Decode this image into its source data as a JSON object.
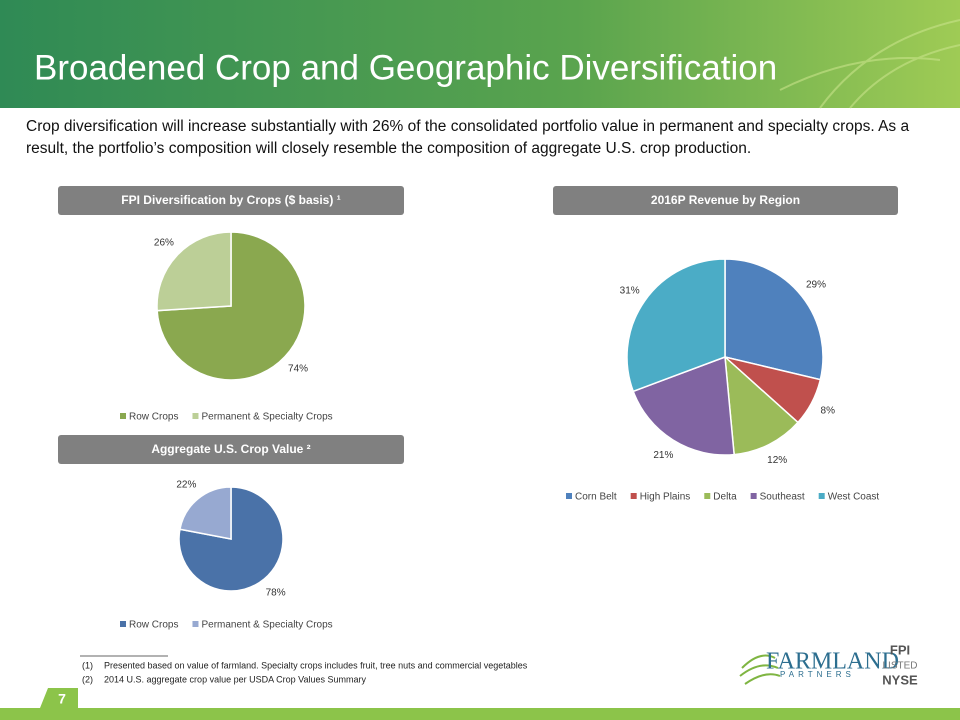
{
  "slide": {
    "title": "Broadened Crop and Geographic Diversification",
    "intro": "Crop diversification will increase substantially with 26% of the consolidated portfolio value in permanent and specialty crops. As a result, the portfolio’s composition will closely resemble the composition of aggregate U.S. crop production.",
    "footnotes": [
      {
        "marker": "(1)",
        "text": "Presented based on value of farmland. Specialty crops includes fruit, tree nuts and commercial vegetables"
      },
      {
        "marker": "(2)",
        "text": "2014 U.S. aggregate crop value per USDA Crop Values Summary"
      }
    ],
    "page_number": "7",
    "logo": {
      "name": "FARMLAND",
      "sub": "PARTNERS"
    },
    "badge": {
      "ticker": "FPI",
      "listed": "LISTED",
      "exchange": "NYSE"
    }
  },
  "chart_data": [
    {
      "type": "pie",
      "title": "FPI Diversification by Crops ($ basis) ¹",
      "categories": [
        "Row Crops",
        "Permanent & Specialty Crops"
      ],
      "values": [
        74,
        26
      ],
      "value_labels": [
        "74%",
        "26%"
      ],
      "colors": [
        "#8aa84f",
        "#bccf97"
      ]
    },
    {
      "type": "pie",
      "title": "Aggregate U.S. Crop Value ²",
      "categories": [
        "Row Crops",
        "Permanent & Specialty Crops"
      ],
      "values": [
        78,
        22
      ],
      "value_labels": [
        "78%",
        "22%"
      ],
      "colors": [
        "#4a72a8",
        "#97a9d1"
      ]
    },
    {
      "type": "pie",
      "title": "2016P Revenue by Region",
      "categories": [
        "Corn Belt",
        "High Plains",
        "Delta",
        "Southeast",
        "West Coast"
      ],
      "values": [
        29,
        8,
        12,
        21,
        31
      ],
      "value_labels": [
        "29%",
        "8%",
        "12%",
        "21%",
        "31%"
      ],
      "colors": [
        "#4f81bd",
        "#c0504d",
        "#9bbb59",
        "#8064a2",
        "#4bacc6"
      ]
    }
  ]
}
